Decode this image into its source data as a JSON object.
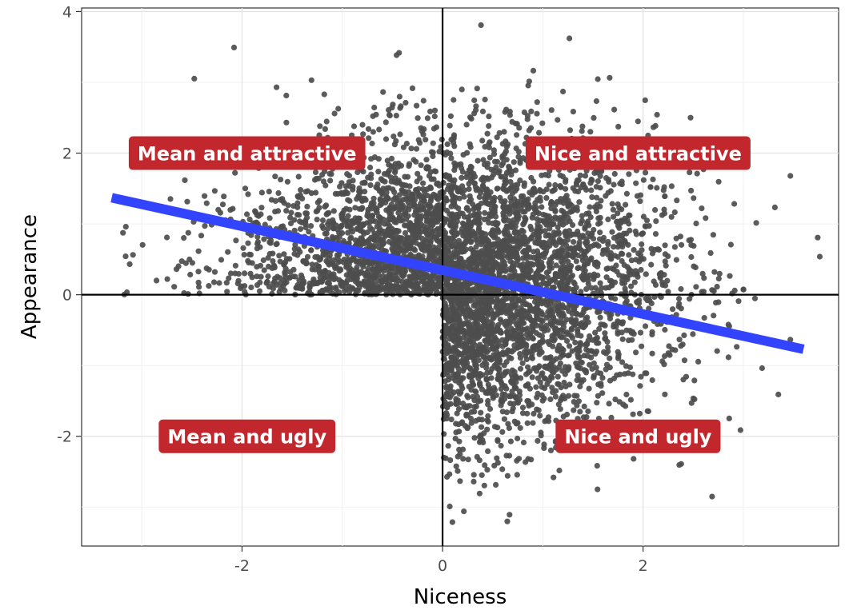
{
  "chart_data": {
    "type": "scatter",
    "title": "",
    "xlabel": "Niceness",
    "ylabel": "Appearance",
    "xlim": [
      -3.6,
      3.95
    ],
    "ylim": [
      -3.55,
      4.05
    ],
    "x_ticks": [
      -2,
      0,
      2
    ],
    "y_ticks": [
      -2,
      0,
      2,
      4
    ],
    "x_tick_labels": [
      "-2",
      "0",
      "2"
    ],
    "y_tick_labels": [
      "-2",
      "0",
      "2",
      "4"
    ],
    "grid": true,
    "legend": "none",
    "reference_lines": [
      {
        "axis": "x",
        "value": 0
      },
      {
        "axis": "y",
        "value": 0
      }
    ],
    "trend_line": {
      "x": [
        -3.3,
        3.6
      ],
      "y": [
        1.37,
        -0.77
      ],
      "intercept": 0.35,
      "slope": -0.31,
      "color": "#3344ff"
    },
    "points_description": "Point cloud of roughly 5,000 people; points fill the upper-left (mean and attractive), upper-right (nice and attractive) and lower-right (nice and ugly) quadrants while the lower-left quadrant is empty.",
    "point_color": "#4d4d4d",
    "annotations": [
      {
        "label": "Mean and attractive",
        "x": -1.95,
        "y": 2.0
      },
      {
        "label": "Nice and attractive",
        "x": 1.95,
        "y": 2.0
      },
      {
        "label": "Mean and ugly",
        "x": -1.95,
        "y": -2.0
      },
      {
        "label": "Nice and ugly",
        "x": 1.95,
        "y": -2.0
      }
    ],
    "annotation_fill": "#c1272d",
    "annotation_text_color": "#ffffff"
  }
}
